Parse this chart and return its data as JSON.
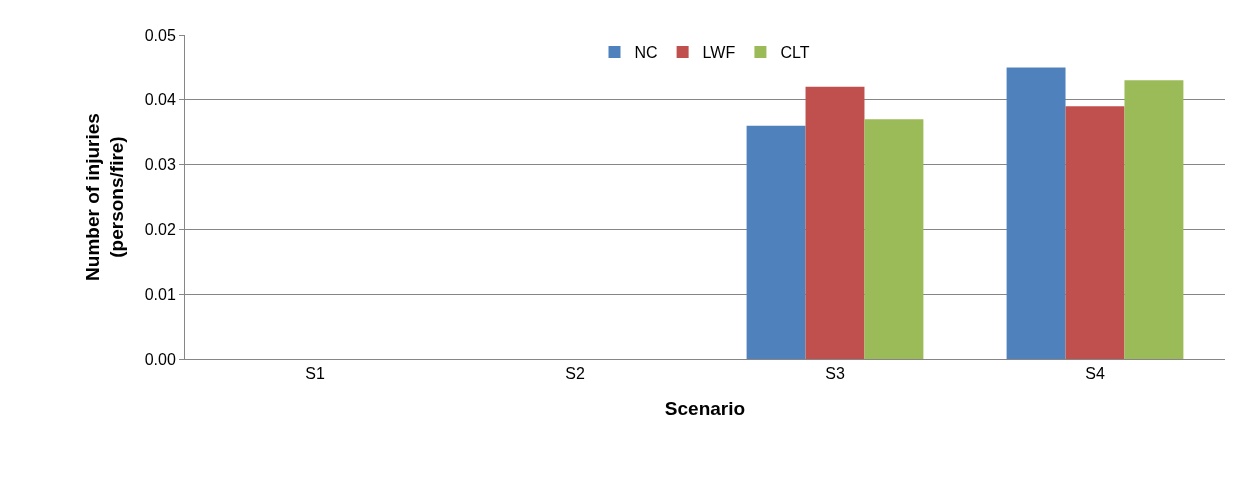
{
  "chart_data": {
    "type": "bar",
    "xlabel": "Scenario",
    "ylabel": "Number of injuries\n(persons/fire)",
    "categories": [
      "S1",
      "S2",
      "S3",
      "S4"
    ],
    "series": [
      {
        "name": "NC",
        "color": "#4f81bd",
        "values": [
          0,
          0,
          0.036,
          0.045
        ]
      },
      {
        "name": "LWF",
        "color": "#c0504d",
        "values": [
          0,
          0,
          0.042,
          0.039
        ]
      },
      {
        "name": "CLT",
        "color": "#9bbb59",
        "values": [
          0,
          0,
          0.037,
          0.043
        ]
      }
    ],
    "ylim": [
      0,
      0.05
    ],
    "yticks": [
      {
        "value": 0,
        "label": "0.00"
      },
      {
        "value": 0.01,
        "label": "0.01"
      },
      {
        "value": 0.02,
        "label": "0.02"
      },
      {
        "value": 0.03,
        "label": "0.03"
      },
      {
        "value": 0.04,
        "label": "0.04"
      },
      {
        "value": 0.05,
        "label": "0.05"
      }
    ],
    "grid": "y",
    "legend": "top"
  }
}
